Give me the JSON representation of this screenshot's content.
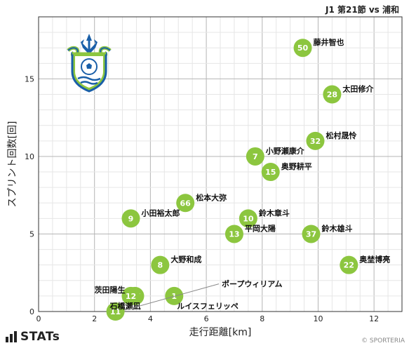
{
  "header": {
    "title": "J1 第21節 vs 浦和"
  },
  "footer": {
    "brand": "STATs",
    "copyright": "© SPORTERIA"
  },
  "colors": {
    "point": "#8cc63f",
    "grid": "#cccccc",
    "leader": "#888888"
  },
  "chart_data": {
    "type": "scatter",
    "xlabel": "走行距離[km]",
    "ylabel": "スプリント回数[回]",
    "xlim": [
      0,
      13
    ],
    "ylim": [
      0,
      19
    ],
    "xticks": [
      0,
      2,
      4,
      6,
      8,
      10,
      12
    ],
    "yticks": [
      0,
      5,
      10,
      15
    ],
    "grid": true,
    "points": [
      {
        "number": "50",
        "name": "藤井智也",
        "x": 9.45,
        "y": 17,
        "label_side": "right"
      },
      {
        "number": "28",
        "name": "太田修介",
        "x": 10.5,
        "y": 14,
        "label_side": "right"
      },
      {
        "number": "32",
        "name": "松村晟怜",
        "x": 9.9,
        "y": 11,
        "label_side": "right"
      },
      {
        "number": "7",
        "name": "小野瀬康介",
        "x": 7.75,
        "y": 10,
        "label_side": "right"
      },
      {
        "number": "15",
        "name": "奥野耕平",
        "x": 8.3,
        "y": 9,
        "label_side": "right"
      },
      {
        "number": "66",
        "name": "松本大弥",
        "x": 5.25,
        "y": 7,
        "label_side": "right"
      },
      {
        "number": "9",
        "name": "小田裕太郎",
        "x": 3.3,
        "y": 6,
        "label_side": "right"
      },
      {
        "number": "10",
        "name": "鈴木章斗",
        "x": 7.5,
        "y": 6,
        "label_side": "right"
      },
      {
        "number": "13",
        "name": "平岡大陽",
        "x": 7.0,
        "y": 5,
        "label_side": "right"
      },
      {
        "number": "37",
        "name": "鈴木雄斗",
        "x": 9.75,
        "y": 5,
        "label_side": "right"
      },
      {
        "number": "8",
        "name": "大野和成",
        "x": 4.35,
        "y": 3,
        "label_side": "right"
      },
      {
        "number": "22",
        "name": "奥埜博亮",
        "x": 11.1,
        "y": 3,
        "label_side": "right"
      },
      {
        "number": "1",
        "name": "ルイスフェリッペ",
        "x": 4.85,
        "y": 1,
        "label_side": "below-right"
      },
      {
        "number": "17",
        "name": "茨田陽生",
        "x": 3.45,
        "y": 1,
        "label_side": "left"
      },
      {
        "number": "12",
        "name": "石橋瀬凪",
        "x": 3.3,
        "y": 1,
        "label_side": "below"
      },
      {
        "number": "11",
        "name": "ポープウィリアム",
        "x": 2.75,
        "y": 0,
        "label_side": "callout"
      }
    ]
  }
}
